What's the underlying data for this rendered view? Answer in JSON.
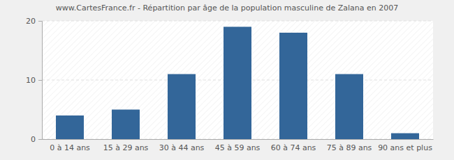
{
  "chart_data": {
    "type": "bar",
    "title": "www.CartesFrance.fr - Répartition par âge de la population masculine de Zalana en 2007",
    "categories": [
      "0 à 14 ans",
      "15 à 29 ans",
      "30 à 44 ans",
      "45 à 59 ans",
      "60 à 74 ans",
      "75 à 89 ans",
      "90 ans et plus"
    ],
    "values": [
      4,
      5,
      11,
      19,
      18,
      11,
      1
    ],
    "color": "#336699",
    "ylim": [
      0,
      20
    ],
    "yticks": [
      0,
      10,
      20
    ],
    "grid": true
  }
}
